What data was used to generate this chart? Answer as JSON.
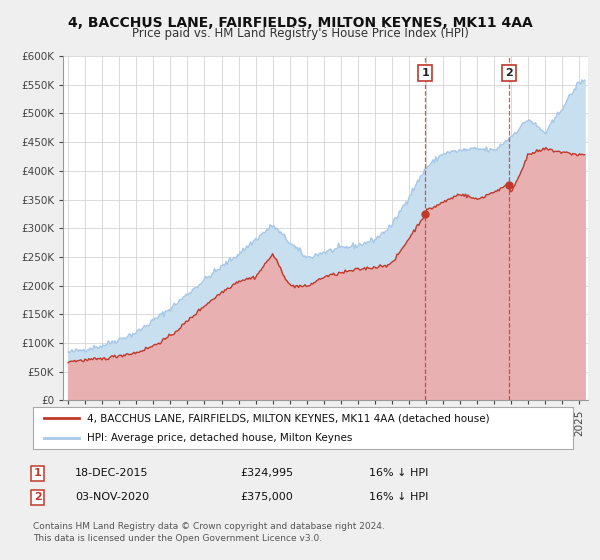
{
  "title": "4, BACCHUS LANE, FAIRFIELDS, MILTON KEYNES, MK11 4AA",
  "subtitle": "Price paid vs. HM Land Registry's House Price Index (HPI)",
  "background_color": "#efefef",
  "plot_bg_color": "#ffffff",
  "grid_color": "#cccccc",
  "ylim": [
    0,
    600000
  ],
  "yticks": [
    0,
    50000,
    100000,
    150000,
    200000,
    250000,
    300000,
    350000,
    400000,
    450000,
    500000,
    550000,
    600000
  ],
  "ytick_labels": [
    "£0",
    "£50K",
    "£100K",
    "£150K",
    "£200K",
    "£250K",
    "£300K",
    "£350K",
    "£400K",
    "£450K",
    "£500K",
    "£550K",
    "£600K"
  ],
  "xlim_start": 1994.7,
  "xlim_end": 2025.5,
  "xticks": [
    1995,
    1996,
    1997,
    1998,
    1999,
    2000,
    2001,
    2002,
    2003,
    2004,
    2005,
    2006,
    2007,
    2008,
    2009,
    2010,
    2011,
    2012,
    2013,
    2014,
    2015,
    2016,
    2017,
    2018,
    2019,
    2020,
    2021,
    2022,
    2023,
    2024,
    2025
  ],
  "hpi_color": "#a8c8e8",
  "hpi_fill_color": "#c8dff0",
  "price_color": "#c0392b",
  "price_fill_color": "#e8b0b0",
  "marker_color": "#c0392b",
  "vline_color": "#c0392b",
  "ann1_x": 2015.96,
  "ann1_price": 324995,
  "ann2_x": 2020.84,
  "ann2_price": 375000,
  "legend_label1": "4, BACCHUS LANE, FAIRFIELDS, MILTON KEYNES, MK11 4AA (detached house)",
  "legend_label2": "HPI: Average price, detached house, Milton Keynes",
  "footer1": "Contains HM Land Registry data © Crown copyright and database right 2024.",
  "footer2": "This data is licensed under the Open Government Licence v3.0.",
  "info_row1": {
    "num": "1",
    "date": "18-DEC-2015",
    "price": "£324,995",
    "pct": "16% ↓ HPI"
  },
  "info_row2": {
    "num": "2",
    "date": "03-NOV-2020",
    "price": "£375,000",
    "pct": "16% ↓ HPI"
  },
  "hpi_anchors_x": [
    1995,
    1997,
    1999,
    2001,
    2003,
    2005,
    2007,
    2008,
    2009,
    2010,
    2011,
    2012,
    2013,
    2014,
    2015,
    2016,
    2017,
    2018,
    2019,
    2020,
    2021,
    2022,
    2023,
    2024,
    2025
  ],
  "hpi_anchors_y": [
    83000,
    95000,
    118000,
    160000,
    210000,
    255000,
    305000,
    275000,
    248000,
    258000,
    265000,
    270000,
    280000,
    305000,
    355000,
    405000,
    430000,
    435000,
    438000,
    435000,
    460000,
    490000,
    465000,
    510000,
    555000
  ],
  "price_anchors_x": [
    1995,
    1996,
    1997,
    1998,
    1999,
    2000,
    2001,
    2002,
    2003,
    2004,
    2005,
    2006,
    2007,
    2008,
    2009,
    2010,
    2011,
    2012,
    2013,
    2014,
    2015.96,
    2016,
    2017,
    2018,
    2019,
    2020.84,
    2021,
    2022,
    2023,
    2024,
    2025
  ],
  "price_anchors_y": [
    68000,
    70000,
    72000,
    78000,
    83000,
    95000,
    112000,
    138000,
    165000,
    188000,
    208000,
    215000,
    255000,
    200000,
    198000,
    215000,
    222000,
    228000,
    232000,
    238000,
    324995,
    330000,
    345000,
    360000,
    350000,
    375000,
    362000,
    428000,
    438000,
    432000,
    428000
  ]
}
